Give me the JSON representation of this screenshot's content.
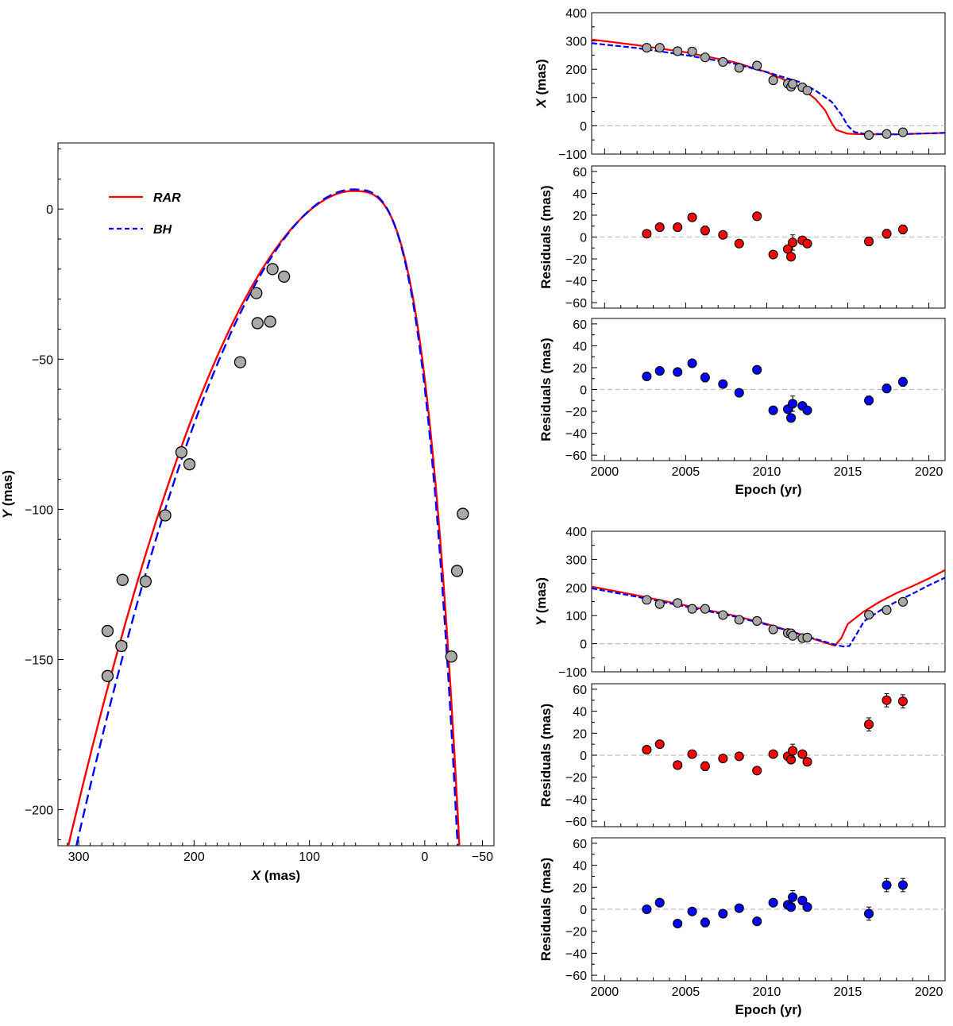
{
  "chart_data": [
    {
      "id": "orbit",
      "type": "scatter",
      "xlabel_var": "X",
      "xlabel_unit": "(mas)",
      "ylabel_var": "Y",
      "ylabel_unit": "(mas)",
      "xlim": [
        318,
        -60
      ],
      "ylim": [
        -212,
        22
      ],
      "xticks": [
        300,
        200,
        100,
        0,
        -50
      ],
      "xtick_labels": [
        "300",
        "200",
        "100",
        "0",
        "−50"
      ],
      "yticks": [
        0,
        -50,
        -100,
        -150,
        -200
      ],
      "ytick_labels": [
        "0",
        "−50",
        "−100",
        "−150",
        "−200"
      ],
      "legend": [
        {
          "name": "RAR",
          "color": "#ff0000",
          "dash": "solid"
        },
        {
          "name": "BH",
          "color": "#0000ff",
          "dash": "dashed"
        }
      ],
      "points": [
        [
          275,
          -155.5
        ],
        [
          275,
          -140.5
        ],
        [
          263,
          -145.5
        ],
        [
          262,
          -123.5
        ],
        [
          242,
          -124
        ],
        [
          225,
          -102
        ],
        [
          211,
          -81
        ],
        [
          204,
          -85
        ],
        [
          160,
          -51
        ],
        [
          146,
          -28
        ],
        [
          145,
          -38
        ],
        [
          134,
          -37.5
        ],
        [
          132,
          -20
        ],
        [
          122,
          -22.5
        ],
        [
          -23,
          -149
        ],
        [
          -28,
          -120.5
        ],
        [
          -33,
          -101.5
        ]
      ],
      "series": [
        {
          "name": "RAR",
          "color": "#ff0000",
          "apex": [
            63,
            6
          ],
          "xb_start": 309,
          "xb_end": -30,
          "yb_start": -212,
          "yb_end": -212
        },
        {
          "name": "BH",
          "color": "#0000ff",
          "apex": [
            63,
            6.5
          ],
          "xb_start": 302,
          "xb_end": -28.5,
          "yb_start": -212,
          "yb_end": -212
        }
      ]
    },
    {
      "id": "x-vs-epoch",
      "type": "line",
      "ylabel_var": "X",
      "ylabel_unit": "(mas)",
      "xlim": [
        1999.2,
        2021
      ],
      "ylim": [
        -100,
        400
      ],
      "yticks": [
        400,
        300,
        200,
        100,
        0,
        -100
      ],
      "epochs": [
        2002.6,
        2003.4,
        2004.5,
        2005.4,
        2006.2,
        2007.3,
        2008.3,
        2009.4,
        2010.4,
        2011.3,
        2011.5,
        2011.6,
        2012.2,
        2012.5,
        2016.3,
        2017.4,
        2018.4
      ],
      "values": [
        276,
        276,
        264,
        263,
        242,
        226,
        205,
        213,
        161,
        149,
        138,
        148,
        136,
        125,
        -33,
        -29,
        -23
      ],
      "series": [
        {
          "name": "RAR",
          "color": "#ff0000",
          "x": [
            1999.2,
            2002,
            2005,
            2008,
            2010,
            2012,
            2013,
            2013.6,
            2014,
            2014.3,
            2015,
            2016,
            2018,
            2021
          ],
          "y": [
            305,
            285,
            260,
            225,
            190,
            140,
            95,
            55,
            10,
            -15,
            -28,
            -30,
            -30,
            -25
          ]
        },
        {
          "name": "BH",
          "color": "#0000ff",
          "x": [
            1999.2,
            2002,
            2005,
            2008,
            2010,
            2012,
            2013,
            2014,
            2014.6,
            2015,
            2015.4,
            2016,
            2018,
            2021
          ],
          "y": [
            292,
            275,
            250,
            220,
            190,
            155,
            125,
            85,
            40,
            0,
            -22,
            -28,
            -30,
            -25
          ]
        }
      ]
    },
    {
      "id": "x-residuals-rar",
      "type": "scatter",
      "ylabel": "Residuals (mas)",
      "color": "#ff0000",
      "xlim": [
        1999.2,
        2021
      ],
      "ylim": [
        -65,
        65
      ],
      "yticks": [
        60,
        40,
        20,
        0,
        -20,
        -40,
        -60
      ],
      "epochs": [
        2002.6,
        2003.4,
        2004.5,
        2005.4,
        2006.2,
        2007.3,
        2008.3,
        2009.4,
        2010.4,
        2011.3,
        2011.5,
        2011.6,
        2012.2,
        2012.5,
        2016.3,
        2017.4,
        2018.4
      ],
      "values": [
        3,
        9,
        9,
        18,
        6,
        2,
        -6,
        19,
        -16,
        -11,
        -18,
        -5,
        -3,
        -6,
        -4,
        3,
        7
      ],
      "errors": [
        0,
        0,
        0,
        0,
        4,
        0,
        0,
        0,
        0,
        0,
        0,
        7,
        0,
        0,
        4,
        4,
        4
      ]
    },
    {
      "id": "x-residuals-bh",
      "type": "scatter",
      "ylabel": "Residuals (mas)",
      "color": "#0000ff",
      "xlim": [
        1999.2,
        2021
      ],
      "ylim": [
        -65,
        65
      ],
      "yticks": [
        60,
        40,
        20,
        0,
        -20,
        -40,
        -60
      ],
      "epochs": [
        2002.6,
        2003.4,
        2004.5,
        2005.4,
        2006.2,
        2007.3,
        2008.3,
        2009.4,
        2010.4,
        2011.3,
        2011.5,
        2011.6,
        2012.2,
        2012.5,
        2016.3,
        2017.4,
        2018.4
      ],
      "values": [
        12,
        17,
        16,
        24,
        11,
        5,
        -3,
        18,
        -19,
        -18,
        -26,
        -13,
        -15,
        -19,
        -10,
        1,
        7
      ],
      "errors": [
        0,
        0,
        0,
        0,
        4,
        0,
        0,
        0,
        0,
        0,
        0,
        7,
        0,
        0,
        4,
        4,
        4
      ],
      "xlabel": "Epoch (yr)",
      "xticks": [
        2000,
        2005,
        2010,
        2015,
        2020
      ]
    },
    {
      "id": "y-vs-epoch",
      "type": "line",
      "ylabel_var": "Y",
      "ylabel_unit": "(mas)",
      "xlim": [
        1999.2,
        2021
      ],
      "ylim": [
        -100,
        400
      ],
      "yticks": [
        400,
        300,
        200,
        100,
        0,
        -100
      ],
      "epochs": [
        2002.6,
        2003.4,
        2004.5,
        2005.4,
        2006.2,
        2007.3,
        2008.3,
        2009.4,
        2010.4,
        2011.3,
        2011.5,
        2011.6,
        2012.2,
        2012.5,
        2016.3,
        2017.4,
        2018.4
      ],
      "values": [
        156,
        141,
        145,
        124,
        124,
        102,
        85,
        81,
        51,
        38,
        37,
        28,
        20,
        22,
        103,
        120,
        149
      ],
      "series": [
        {
          "name": "RAR",
          "color": "#ff0000",
          "x": [
            1999.2,
            2002,
            2005,
            2008,
            2010,
            2012,
            2013,
            2014.2,
            2014.6,
            2015,
            2016,
            2017,
            2018,
            2019,
            2020,
            2021
          ],
          "y": [
            203,
            172,
            136,
            100,
            70,
            35,
            15,
            -7,
            20,
            70,
            115,
            150,
            180,
            205,
            232,
            262
          ]
        },
        {
          "name": "BH",
          "color": "#0000ff",
          "x": [
            1999.2,
            2002,
            2005,
            2008,
            2010,
            2012,
            2013,
            2014,
            2014.7,
            2015.1,
            2015.6,
            2016,
            2017,
            2018,
            2019,
            2020,
            2021
          ],
          "y": [
            197,
            167,
            132,
            97,
            68,
            35,
            17,
            0,
            -10,
            -8,
            40,
            80,
            118,
            150,
            178,
            208,
            235
          ]
        }
      ]
    },
    {
      "id": "y-residuals-rar",
      "type": "scatter",
      "ylabel": "Residuals (mas)",
      "color": "#ff0000",
      "xlim": [
        1999.2,
        2021
      ],
      "ylim": [
        -65,
        65
      ],
      "yticks": [
        60,
        40,
        20,
        0,
        -20,
        -40,
        -60
      ],
      "epochs": [
        2002.6,
        2003.4,
        2004.5,
        2005.4,
        2006.2,
        2007.3,
        2008.3,
        2009.4,
        2010.4,
        2011.3,
        2011.5,
        2011.6,
        2012.2,
        2012.5,
        2016.3,
        2017.4,
        2018.4
      ],
      "values": [
        5,
        10,
        -9,
        1,
        -10,
        -3,
        -1,
        -14,
        1,
        -1,
        -4,
        4,
        1,
        -6,
        28,
        50,
        49
      ],
      "errors": [
        0,
        0,
        0,
        0,
        4,
        0,
        0,
        0,
        0,
        0,
        0,
        6,
        0,
        0,
        6,
        6,
        6
      ]
    },
    {
      "id": "y-residuals-bh",
      "type": "scatter",
      "ylabel": "Residuals (mas)",
      "color": "#0000ff",
      "xlim": [
        1999.2,
        2021
      ],
      "ylim": [
        -65,
        65
      ],
      "yticks": [
        60,
        40,
        20,
        0,
        -20,
        -40,
        -60
      ],
      "epochs": [
        2002.6,
        2003.4,
        2004.5,
        2005.4,
        2006.2,
        2007.3,
        2008.3,
        2009.4,
        2010.4,
        2011.3,
        2011.5,
        2011.6,
        2012.2,
        2012.5,
        2016.3,
        2017.4,
        2018.4
      ],
      "values": [
        0,
        6,
        -13,
        -2,
        -12,
        -4,
        1,
        -11,
        6,
        4,
        2,
        11,
        8,
        2,
        -4,
        22,
        22
      ],
      "errors": [
        0,
        0,
        0,
        0,
        4,
        0,
        0,
        0,
        0,
        0,
        0,
        6,
        0,
        0,
        6,
        6,
        6
      ],
      "xlabel": "Epoch (yr)",
      "xticks": [
        2000,
        2005,
        2010,
        2015,
        2020
      ]
    }
  ]
}
